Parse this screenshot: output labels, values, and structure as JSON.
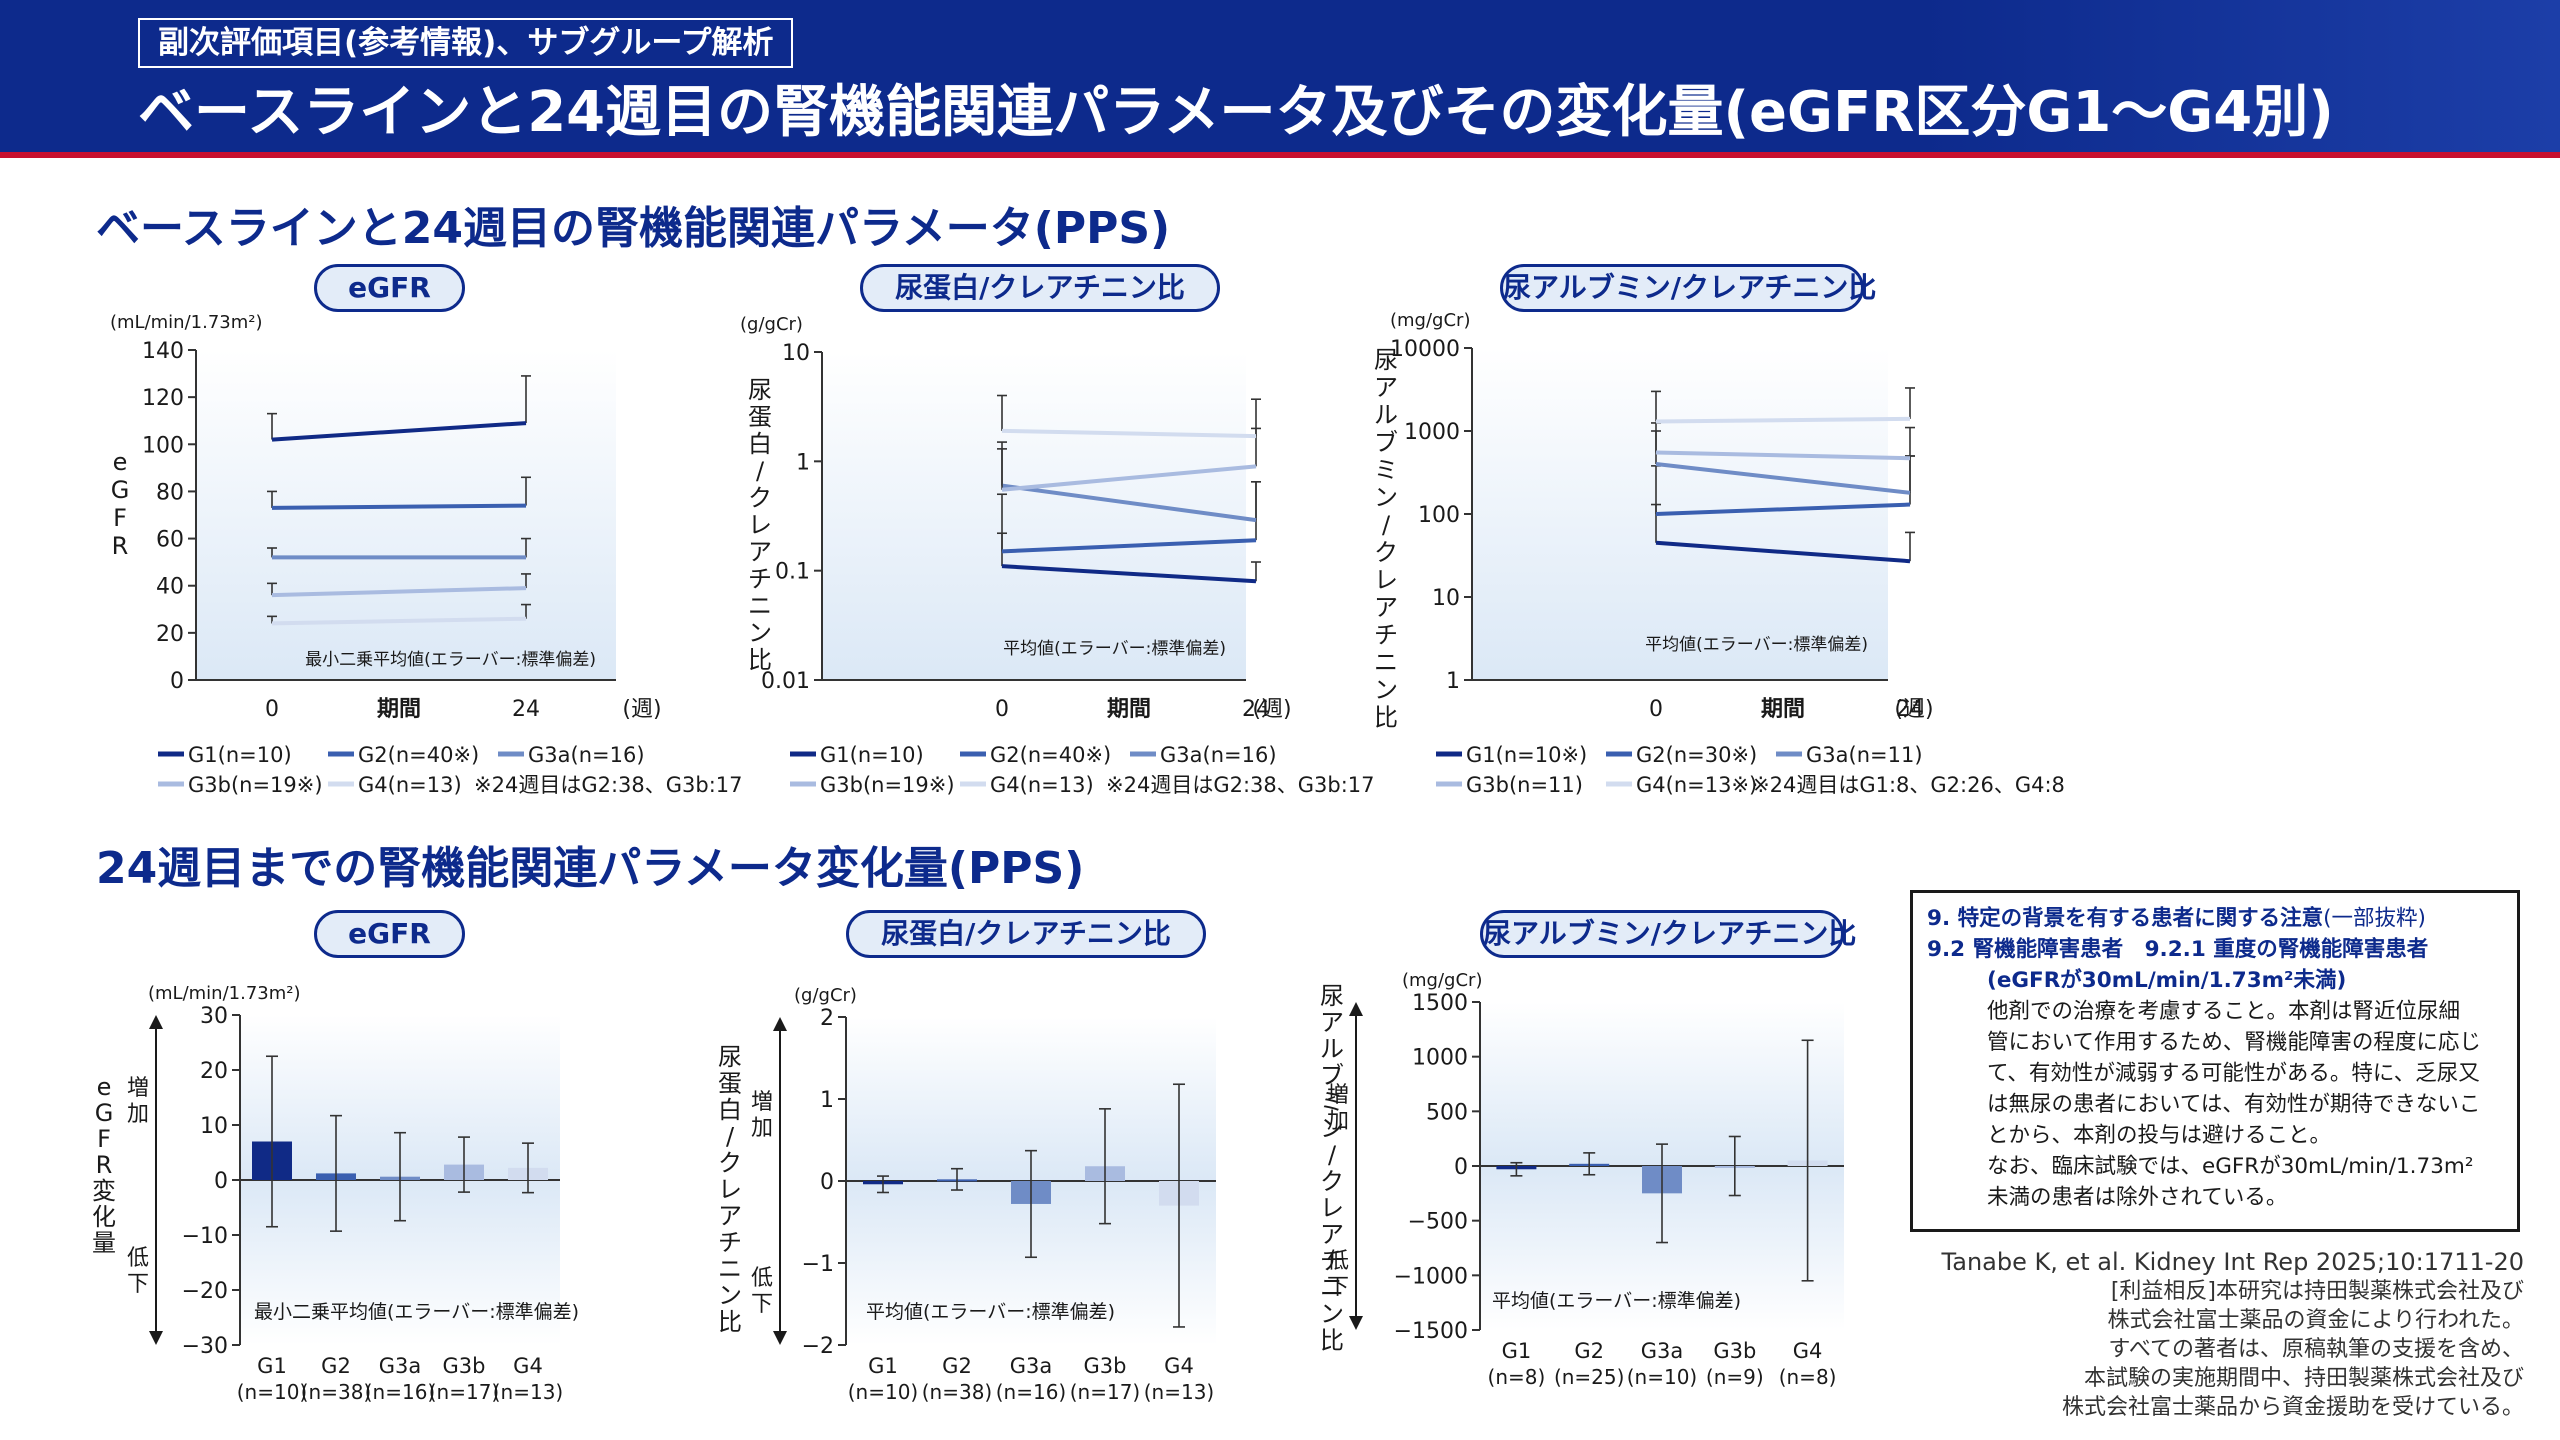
{
  "header": {
    "tag": "副次評価項目(参考情報)、サブグループ解析",
    "title": "ベースラインと24週目の腎機能関連パラメータ及びその変化量(eGFR区分G1〜G4別)"
  },
  "sections": {
    "top": "ベースラインと24週目の腎機能関連パラメータ(PPS)",
    "bottom": "24週目までの腎機能関連パラメータ変化量(PPS)"
  },
  "colors": {
    "G1": "#102a86",
    "G2": "#3a5fb0",
    "G3a": "#6f8cc6",
    "G3b": "#a9bbe0",
    "G4": "#d2dcef"
  },
  "charts": {
    "top_egfr": {
      "pill": "eGFR",
      "unit": "(mL/min/1.73m²)",
      "ylabel": "eGFR",
      "yticks": [
        "140",
        "120",
        "100",
        "80",
        "60",
        "40",
        "20",
        "0"
      ],
      "xticks": [
        "0",
        "期間",
        "24",
        "(週)"
      ],
      "note": "最小二乗平均値(エラーバー:標準偏差)",
      "legend": [
        {
          "key": "G1",
          "label": "G1(n=10)"
        },
        {
          "key": "G2",
          "label": "G2(n=40※)"
        },
        {
          "key": "G3a",
          "label": "G3a(n=16)"
        },
        {
          "key": "G3b",
          "label": "G3b(n=19※)"
        },
        {
          "key": "G4",
          "label": "G4(n=13)"
        }
      ],
      "legend_note": "※24週目はG2:38、G3b:17"
    },
    "top_upcr": {
      "pill": "尿蛋白/クレアチニン比",
      "unit": "(g/gCr)",
      "ylabel": "尿蛋白/クレアチニン比",
      "yticks": [
        "10",
        "1",
        "0.1",
        "0.01"
      ],
      "xticks": [
        "0",
        "期間",
        "24",
        "(週)"
      ],
      "note": "平均値(エラーバー:標準偏差)",
      "legend": [
        {
          "key": "G1",
          "label": "G1(n=10)"
        },
        {
          "key": "G2",
          "label": "G2(n=40※)"
        },
        {
          "key": "G3a",
          "label": "G3a(n=16)"
        },
        {
          "key": "G3b",
          "label": "G3b(n=19※)"
        },
        {
          "key": "G4",
          "label": "G4(n=13)"
        }
      ],
      "legend_note": "※24週目はG2:38、G3b:17"
    },
    "top_uacr": {
      "pill": "尿アルブミン/クレアチニン比",
      "unit": "(mg/gCr)",
      "ylabel": "尿アルブミン/クレアチニン比",
      "yticks": [
        "10000",
        "1000",
        "100",
        "10",
        "1"
      ],
      "xticks": [
        "0",
        "期間",
        "24",
        "(週)"
      ],
      "note": "平均値(エラーバー:標準偏差)",
      "legend": [
        {
          "key": "G1",
          "label": "G1(n=10※)"
        },
        {
          "key": "G2",
          "label": "G2(n=30※)"
        },
        {
          "key": "G3a",
          "label": "G3a(n=11)"
        },
        {
          "key": "G3b",
          "label": "G3b(n=11)"
        },
        {
          "key": "G4",
          "label": "G4(n=13※)"
        }
      ],
      "legend_note": "※24週目はG1:8、G2:26、G4:8"
    },
    "bot_egfr": {
      "pill": "eGFR",
      "unit": "(mL/min/1.73m²)",
      "ylabel": "eGFR変化量",
      "up": "増加",
      "down": "低下",
      "yticks": [
        "30",
        "20",
        "10",
        "0",
        "−10",
        "−20",
        "−30"
      ],
      "cats": [
        "G1",
        "G2",
        "G3a",
        "G3b",
        "G4"
      ],
      "ns": [
        "(n=10)",
        "(n=38)",
        "(n=16)",
        "(n=17)",
        "(n=13)"
      ],
      "note": "最小二乗平均値(エラーバー:標準偏差)"
    },
    "bot_upcr": {
      "pill": "尿蛋白/クレアチニン比",
      "unit": "(g/gCr)",
      "ylabel": "尿蛋白/クレアチニン比",
      "up": "増加",
      "down": "低下",
      "yticks": [
        "2",
        "1",
        "0",
        "−1",
        "−2"
      ],
      "cats": [
        "G1",
        "G2",
        "G3a",
        "G3b",
        "G4"
      ],
      "ns": [
        "(n=10)",
        "(n=38)",
        "(n=16)",
        "(n=17)",
        "(n=13)"
      ],
      "note": "平均値(エラーバー:標準偏差)"
    },
    "bot_uacr": {
      "pill": "尿アルブミン/クレアチニン比",
      "unit": "(mg/gCr)",
      "ylabel": "尿アルブミン/クレアチニン比",
      "up": "増加",
      "down": "低下",
      "yticks": [
        "1500",
        "1000",
        "500",
        "0",
        "−500",
        "−1000",
        "−1500"
      ],
      "cats": [
        "G1",
        "G2",
        "G3a",
        "G3b",
        "G4"
      ],
      "ns": [
        "(n=8)",
        "(n=25)",
        "(n=10)",
        "(n=9)",
        "(n=8)"
      ],
      "note": "平均値(エラーバー:標準偏差)"
    }
  },
  "note_box": {
    "h1": "9. 特定の背景を有する患者に関する注意",
    "h1b": "(一部抜粋)",
    "h2": "9.2 腎機能障害患者　9.2.1 重度の腎機能障害患者",
    "h3": "(eGFRが30mL/min/1.73m²未満)",
    "lines": [
      "他剤での治療を考慮すること。本剤は腎近位尿細",
      "管において作用するため、腎機能障害の程度に応じ",
      "て、有効性が減弱する可能性がある。特に、乏尿又",
      "は無尿の患者においては、有効性が期待できないこ",
      "とから、本剤の投与は避けること。",
      "なお、臨床試験では、eGFRが30mL/min/1.73m²",
      "未満の患者は除外されている。"
    ]
  },
  "citation": [
    "Tanabe K, et al. Kidney Int Rep 2025;10:1711-20",
    "[利益相反]本研究は持田製薬株式会社及び",
    "株式会社富士薬品の資金により行われた。",
    "すべての著者は、原稿執筆の支援を含め、",
    "本試験の実施期間中、持田製薬株式会社及び",
    "株式会社富士薬品から資金援助を受けている。"
  ],
  "chart_data": [
    {
      "type": "line",
      "title": "eGFR",
      "ylabel": "eGFR",
      "unit": "(mL/min/1.73m²)",
      "x": [
        0,
        24
      ],
      "ylim": [
        0,
        140
      ],
      "yscale": "linear",
      "series": [
        {
          "name": "G1(n=10)",
          "values": [
            102,
            109
          ],
          "sd": [
            11,
            20
          ]
        },
        {
          "name": "G2(n=40※)",
          "values": [
            73,
            74
          ],
          "sd": [
            7,
            12
          ]
        },
        {
          "name": "G3a(n=16)",
          "values": [
            52,
            52
          ],
          "sd": [
            4,
            8
          ]
        },
        {
          "name": "G3b(n=19※)",
          "values": [
            36,
            39
          ],
          "sd": [
            5,
            6
          ]
        },
        {
          "name": "G4(n=13)",
          "values": [
            24,
            26
          ],
          "sd": [
            3,
            6
          ]
        }
      ]
    },
    {
      "type": "line",
      "title": "尿蛋白/クレアチニン比",
      "ylabel": "尿蛋白/クレアチニン比",
      "unit": "(g/gCr)",
      "x": [
        0,
        24
      ],
      "ylim": [
        0.01,
        10
      ],
      "yscale": "log",
      "series": [
        {
          "name": "G1(n=10)",
          "values": [
            0.11,
            0.08
          ],
          "hi": [
            0.22,
            0.12
          ]
        },
        {
          "name": "G2(n=40※)",
          "values": [
            0.15,
            0.19
          ],
          "hi": [
            0.5,
            0.65
          ]
        },
        {
          "name": "G3a(n=16)",
          "values": [
            0.6,
            0.29
          ],
          "hi": [
            1.5,
            0.65
          ]
        },
        {
          "name": "G3b(n=19※)",
          "values": [
            0.55,
            0.9
          ],
          "hi": [
            1.3,
            2.0
          ]
        },
        {
          "name": "G4(n=13)",
          "values": [
            1.9,
            1.7
          ],
          "hi": [
            4.0,
            3.7
          ]
        }
      ]
    },
    {
      "type": "line",
      "title": "尿アルブミン/クレアチニン比",
      "ylabel": "尿アルブミン/クレアチニン比",
      "unit": "(mg/gCr)",
      "x": [
        0,
        24
      ],
      "ylim": [
        1,
        10000
      ],
      "yscale": "log",
      "series": [
        {
          "name": "G1(n=10※)",
          "values": [
            45,
            27
          ],
          "hi": [
            130,
            60
          ]
        },
        {
          "name": "G2(n=30※)",
          "values": [
            100,
            130
          ],
          "hi": [
            380,
            500
          ]
        },
        {
          "name": "G3a(n=11)",
          "values": [
            400,
            180
          ],
          "hi": [
            1000,
            500
          ]
        },
        {
          "name": "G3b(n=11)",
          "values": [
            550,
            470
          ],
          "hi": [
            1250,
            1100
          ]
        },
        {
          "name": "G4(n=13※)",
          "values": [
            1300,
            1400
          ],
          "hi": [
            3000,
            3300
          ]
        }
      ]
    },
    {
      "type": "bar",
      "title": "eGFR",
      "ylabel": "eGFR変化量",
      "unit": "(mL/min/1.73m²)",
      "categories": [
        "G1",
        "G2",
        "G3a",
        "G3b",
        "G4"
      ],
      "ylim": [
        -30,
        30
      ],
      "values": [
        7.0,
        1.2,
        0.6,
        2.8,
        2.2
      ],
      "sd": [
        15.5,
        10.5,
        8.0,
        5.0,
        4.5
      ]
    },
    {
      "type": "bar",
      "title": "尿蛋白/クレアチニン比",
      "ylabel": "尿蛋白/クレアチニン比",
      "unit": "(g/gCr)",
      "categories": [
        "G1",
        "G2",
        "G3a",
        "G3b",
        "G4"
      ],
      "ylim": [
        -2,
        2
      ],
      "values": [
        -0.04,
        0.02,
        -0.28,
        0.18,
        -0.3
      ],
      "sd": [
        0.1,
        0.13,
        0.65,
        0.7,
        1.48
      ]
    },
    {
      "type": "bar",
      "title": "尿アルブミン/クレアチニン比",
      "ylabel": "尿アルブミン/クレアチニン比",
      "unit": "(mg/gCr)",
      "categories": [
        "G1",
        "G2",
        "G3a",
        "G3b",
        "G4"
      ],
      "ylim": [
        -1500,
        1500
      ],
      "values": [
        -30,
        20,
        -250,
        0,
        50
      ],
      "sd": [
        60,
        100,
        450,
        270,
        1100
      ]
    }
  ]
}
